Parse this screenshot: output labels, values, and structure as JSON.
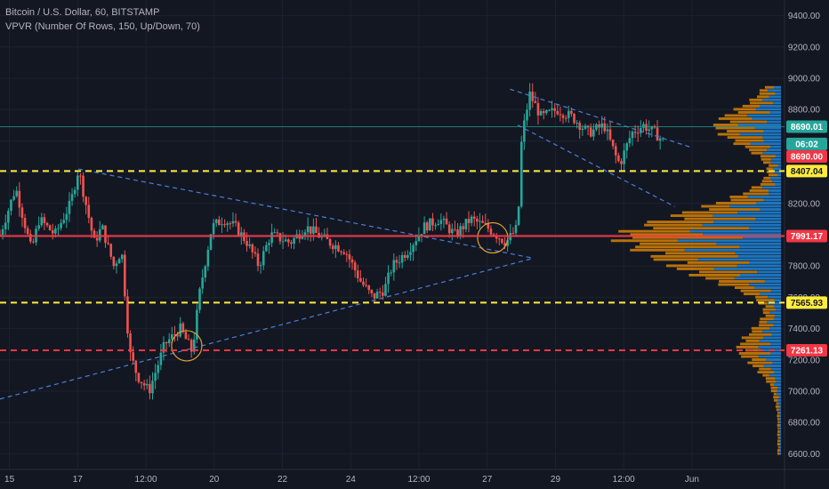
{
  "legend": {
    "title": "Bitcoin / U.S. Dollar, 60, BITSTAMP",
    "indicator": "VPVR (Number Of Rows, 150, Up/Down, 70)"
  },
  "colors": {
    "background": "#131722",
    "grid": "#1e2230",
    "up": "#26a69a",
    "down": "#ef5350",
    "vp_up": "#2196f3",
    "vp_down": "#ff9800",
    "support": "#ffeb3b",
    "resistance": "#f23645",
    "trendline": "#4a7fd6",
    "circle": "#e0a030"
  },
  "chart_data": {
    "type": "candlestick",
    "title": "Bitcoin / U.S. Dollar, 60, BITSTAMP",
    "ylim": [
      6500,
      9500
    ],
    "grid": true,
    "x_ticks": [
      "15",
      "17",
      "12:00",
      "20",
      "22",
      "24",
      "12:00",
      "27",
      "29",
      "12:00",
      "Jun"
    ],
    "y_ticks": [
      6600,
      6800,
      7000,
      7200,
      7400,
      7600,
      7800,
      8000,
      8200,
      8400,
      8600,
      8800,
      9000,
      9200,
      9400
    ],
    "price_path": [
      {
        "x": 0.0,
        "y": 8000
      },
      {
        "x": 0.02,
        "y": 8300
      },
      {
        "x": 0.04,
        "y": 7900
      },
      {
        "x": 0.05,
        "y": 8100
      },
      {
        "x": 0.07,
        "y": 8000
      },
      {
        "x": 0.09,
        "y": 8200
      },
      {
        "x": 0.1,
        "y": 8420
      },
      {
        "x": 0.12,
        "y": 7950
      },
      {
        "x": 0.13,
        "y": 8050
      },
      {
        "x": 0.145,
        "y": 7800
      },
      {
        "x": 0.155,
        "y": 7900
      },
      {
        "x": 0.165,
        "y": 7250
      },
      {
        "x": 0.175,
        "y": 7100
      },
      {
        "x": 0.19,
        "y": 7000
      },
      {
        "x": 0.21,
        "y": 7300
      },
      {
        "x": 0.23,
        "y": 7400
      },
      {
        "x": 0.245,
        "y": 7250
      },
      {
        "x": 0.255,
        "y": 7650
      },
      {
        "x": 0.27,
        "y": 8050
      },
      {
        "x": 0.285,
        "y": 8100
      },
      {
        "x": 0.3,
        "y": 8050
      },
      {
        "x": 0.315,
        "y": 7950
      },
      {
        "x": 0.33,
        "y": 7800
      },
      {
        "x": 0.345,
        "y": 8000
      },
      {
        "x": 0.37,
        "y": 7950
      },
      {
        "x": 0.39,
        "y": 8050
      },
      {
        "x": 0.42,
        "y": 7950
      },
      {
        "x": 0.44,
        "y": 7900
      },
      {
        "x": 0.46,
        "y": 7700
      },
      {
        "x": 0.475,
        "y": 7600
      },
      {
        "x": 0.49,
        "y": 7650
      },
      {
        "x": 0.5,
        "y": 7800
      },
      {
        "x": 0.52,
        "y": 7900
      },
      {
        "x": 0.54,
        "y": 8050
      },
      {
        "x": 0.56,
        "y": 8100
      },
      {
        "x": 0.58,
        "y": 8000
      },
      {
        "x": 0.6,
        "y": 8100
      },
      {
        "x": 0.62,
        "y": 8050
      },
      {
        "x": 0.645,
        "y": 7950
      },
      {
        "x": 0.66,
        "y": 8050
      },
      {
        "x": 0.665,
        "y": 8620
      },
      {
        "x": 0.675,
        "y": 8900
      },
      {
        "x": 0.69,
        "y": 8750
      },
      {
        "x": 0.71,
        "y": 8800
      },
      {
        "x": 0.73,
        "y": 8750
      },
      {
        "x": 0.75,
        "y": 8650
      },
      {
        "x": 0.77,
        "y": 8700
      },
      {
        "x": 0.785,
        "y": 8500
      },
      {
        "x": 0.79,
        "y": 8450
      },
      {
        "x": 0.805,
        "y": 8650
      },
      {
        "x": 0.82,
        "y": 8700
      },
      {
        "x": 0.835,
        "y": 8650
      },
      {
        "x": 0.845,
        "y": 8600
      }
    ],
    "horizontal_levels": [
      {
        "price": 8690.01,
        "label": "8690.01",
        "style": "solid-thin",
        "color": "#26a69a",
        "text_color": "#ffffff"
      },
      {
        "price": 8407.04,
        "label": "8407.04",
        "style": "dashed",
        "color": "#ffeb3b",
        "text_color": "#131722"
      },
      {
        "price": 7991.17,
        "label": "7991.17",
        "style": "solid",
        "color": "#f23645",
        "text_color": "#ffffff"
      },
      {
        "price": 7565.93,
        "label": "7565.93",
        "style": "dashed",
        "color": "#ffeb3b",
        "text_color": "#131722"
      },
      {
        "price": 7261.13,
        "label": "7261.13",
        "style": "dashed",
        "color": "#f23645",
        "text_color": "#ffffff"
      }
    ],
    "extra_price_labels": [
      {
        "price": 8580,
        "label": "06:02",
        "bg": "#26a69a",
        "fg": "#ffffff"
      },
      {
        "price": 8500,
        "label": "8690.00",
        "bg": "#f23645",
        "fg": "#ffffff"
      }
    ],
    "trendlines": [
      {
        "from": {
          "x": 0.0,
          "y": 6950
        },
        "to": {
          "x": 0.68,
          "y": 7850
        }
      },
      {
        "from": {
          "x": 0.1,
          "y": 8420
        },
        "to": {
          "x": 0.68,
          "y": 7850
        }
      },
      {
        "from": {
          "x": 0.65,
          "y": 8930
        },
        "to": {
          "x": 0.88,
          "y": 8560
        }
      },
      {
        "from": {
          "x": 0.66,
          "y": 8700
        },
        "to": {
          "x": 0.86,
          "y": 8180
        }
      }
    ],
    "highlights": [
      {
        "x": 0.238,
        "y": 7290
      },
      {
        "x": 0.628,
        "y": 7980
      }
    ],
    "volume_profile": {
      "poc": 7991.17,
      "shape": [
        {
          "price": 6850,
          "width": 0.02
        },
        {
          "price": 7000,
          "width": 0.05
        },
        {
          "price": 7150,
          "width": 0.12
        },
        {
          "price": 7260,
          "width": 0.3
        },
        {
          "price": 7350,
          "width": 0.2
        },
        {
          "price": 7450,
          "width": 0.1
        },
        {
          "price": 7565,
          "width": 0.06
        },
        {
          "price": 7650,
          "width": 0.25
        },
        {
          "price": 7750,
          "width": 0.55
        },
        {
          "price": 7850,
          "width": 0.75
        },
        {
          "price": 7991,
          "width": 1.0
        },
        {
          "price": 8100,
          "width": 0.7
        },
        {
          "price": 8200,
          "width": 0.35
        },
        {
          "price": 8300,
          "width": 0.12
        },
        {
          "price": 8400,
          "width": 0.05
        },
        {
          "price": 8500,
          "width": 0.1
        },
        {
          "price": 8600,
          "width": 0.3
        },
        {
          "price": 8700,
          "width": 0.45
        },
        {
          "price": 8800,
          "width": 0.25
        },
        {
          "price": 8900,
          "width": 0.08
        }
      ]
    }
  }
}
